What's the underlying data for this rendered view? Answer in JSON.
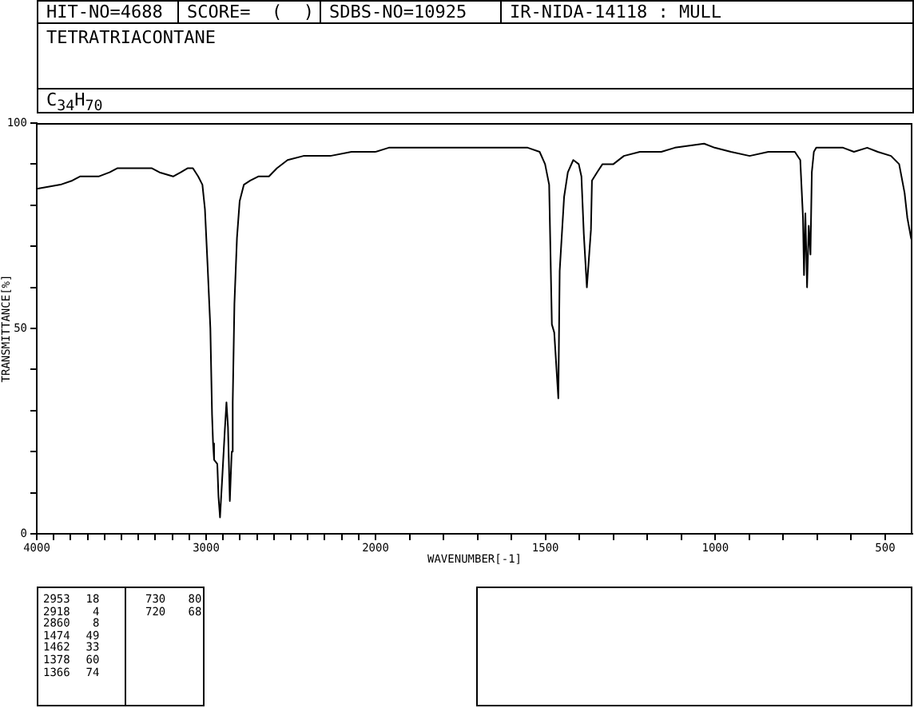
{
  "chart_data": [
    {
      "type": "line",
      "title": "TETRATRIACONTANE",
      "subtitle": "C$_{34}$H$_{70}$",
      "ylabel": "TRANSMITTANCE[%]",
      "annotations": [
        "HIT-NO=4688",
        "SCORE=  (  )",
        "SDBS-NO=10925",
        "IR-NIDA-14118 : MULL",
        "2953 18",
        "2918 4",
        "2860 8",
        "1474 49",
        "1462 33",
        "1378 60",
        "1366 74",
        "730 80",
        "720 68"
      ],
      "xlim": [
        4000,
        2000
      ],
      "xticks": [
        4000,
        {
          "value": 3900,
          "label": null
        },
        {
          "value": 3800,
          "label": null
        },
        {
          "value": 3700,
          "label": null
        },
        {
          "value": 3600,
          "label": null
        },
        {
          "value": 3500,
          "label": null
        },
        {
          "value": 3400,
          "label": null
        },
        {
          "value": 3300,
          "label": null
        },
        {
          "value": 3200,
          "label": null
        },
        {
          "value": 3100,
          "label": null
        },
        3000,
        {
          "value": 2900,
          "label": null
        },
        {
          "value": 2800,
          "label": null
        },
        {
          "value": 2700,
          "label": null
        },
        {
          "value": 2600,
          "label": null
        },
        {
          "value": 2500,
          "label": null
        },
        {
          "value": 2400,
          "label": null
        },
        {
          "value": 2300,
          "label": null
        },
        {
          "value": 2200,
          "label": null
        },
        {
          "value": 2100,
          "label": null
        }
      ],
      "ylim": [
        0,
        100
      ],
      "yticks": [
        0,
        {
          "value": 10,
          "label": null
        },
        {
          "value": 20,
          "label": null
        },
        {
          "value": 30,
          "label": null
        },
        {
          "value": 40,
          "label": null
        },
        50,
        {
          "value": 60,
          "label": null
        },
        {
          "value": 70,
          "label": null
        },
        {
          "value": 80,
          "label": null
        },
        {
          "value": 90,
          "label": null
        },
        100
      ],
      "marker": "none",
      "color": "#000000",
      "x": [
        4000,
        3860,
        3790,
        3745,
        3635,
        3570,
        3525,
        3400,
        3320,
        3275,
        3195,
        3150,
        3110,
        3078,
        3047,
        3022,
        3007,
        2991,
        2975,
        2965,
        2959,
        2953,
        2934,
        2927,
        2918,
        2903,
        2890,
        2880,
        2871,
        2860,
        2849,
        2843,
        2833,
        2818,
        2802,
        2777,
        2739,
        2692,
        2629,
        2582,
        2519,
        2425,
        2267,
        2142,
        2079,
        2016,
        2000
      ],
      "values": [
        84,
        85,
        86,
        87,
        87,
        88,
        89,
        89,
        89,
        88,
        87,
        88,
        89,
        89,
        87,
        85,
        79,
        65,
        50,
        29,
        22,
        18,
        17,
        9,
        4,
        15,
        25,
        32,
        26,
        8,
        20,
        32,
        56,
        72,
        81,
        85,
        86,
        87,
        87,
        89,
        91,
        92,
        92,
        93,
        93,
        93,
        93
      ]
    },
    {
      "type": "line",
      "xlabel": "WAVENUMBER[-1]",
      "xlim": [
        2000,
        420
      ],
      "xticks": [
        2000,
        {
          "value": 1900,
          "label": null
        },
        {
          "value": 1800,
          "label": null
        },
        {
          "value": 1700,
          "label": null
        },
        {
          "value": 1600,
          "label": null
        },
        1500,
        {
          "value": 1400,
          "label": null
        },
        {
          "value": 1300,
          "label": null
        },
        {
          "value": 1200,
          "label": null
        },
        {
          "value": 1100,
          "label": null
        },
        1000,
        {
          "value": 900,
          "label": null
        },
        {
          "value": 800,
          "label": null
        },
        {
          "value": 700,
          "label": null
        },
        {
          "value": 600,
          "label": null
        },
        500
      ],
      "ylim": [
        0,
        100
      ],
      "tick_labels": "x",
      "marker": "none",
      "color": "#000000",
      "x": [
        2000,
        1961,
        1914,
        1850,
        1788,
        1741,
        1678,
        1615,
        1552,
        1517,
        1501,
        1489,
        1481,
        1474,
        1462,
        1458,
        1445,
        1434,
        1418,
        1402,
        1394,
        1387,
        1378,
        1366,
        1363,
        1348,
        1332,
        1300,
        1269,
        1222,
        1182,
        1159,
        1119,
        1033,
        1002,
        954,
        899,
        844,
        766,
        750,
        742,
        739,
        735,
        730,
        725,
        720,
        716,
        710,
        703,
        624,
        592,
        553,
        522,
        483,
        459,
        443,
        435,
        424,
        420
      ],
      "values": [
        93,
        94,
        94,
        94,
        94,
        94,
        94,
        94,
        94,
        93,
        90,
        85,
        51,
        49,
        33,
        64,
        82,
        88,
        91,
        90,
        87,
        73,
        60,
        74,
        86,
        88,
        90,
        90,
        92,
        93,
        93,
        93,
        94,
        95,
        94,
        93,
        92,
        93,
        93,
        91,
        77,
        63,
        78,
        60,
        75,
        68,
        88,
        93,
        94,
        94,
        93,
        94,
        93,
        92,
        90,
        83,
        77,
        72,
        71
      ]
    }
  ]
}
